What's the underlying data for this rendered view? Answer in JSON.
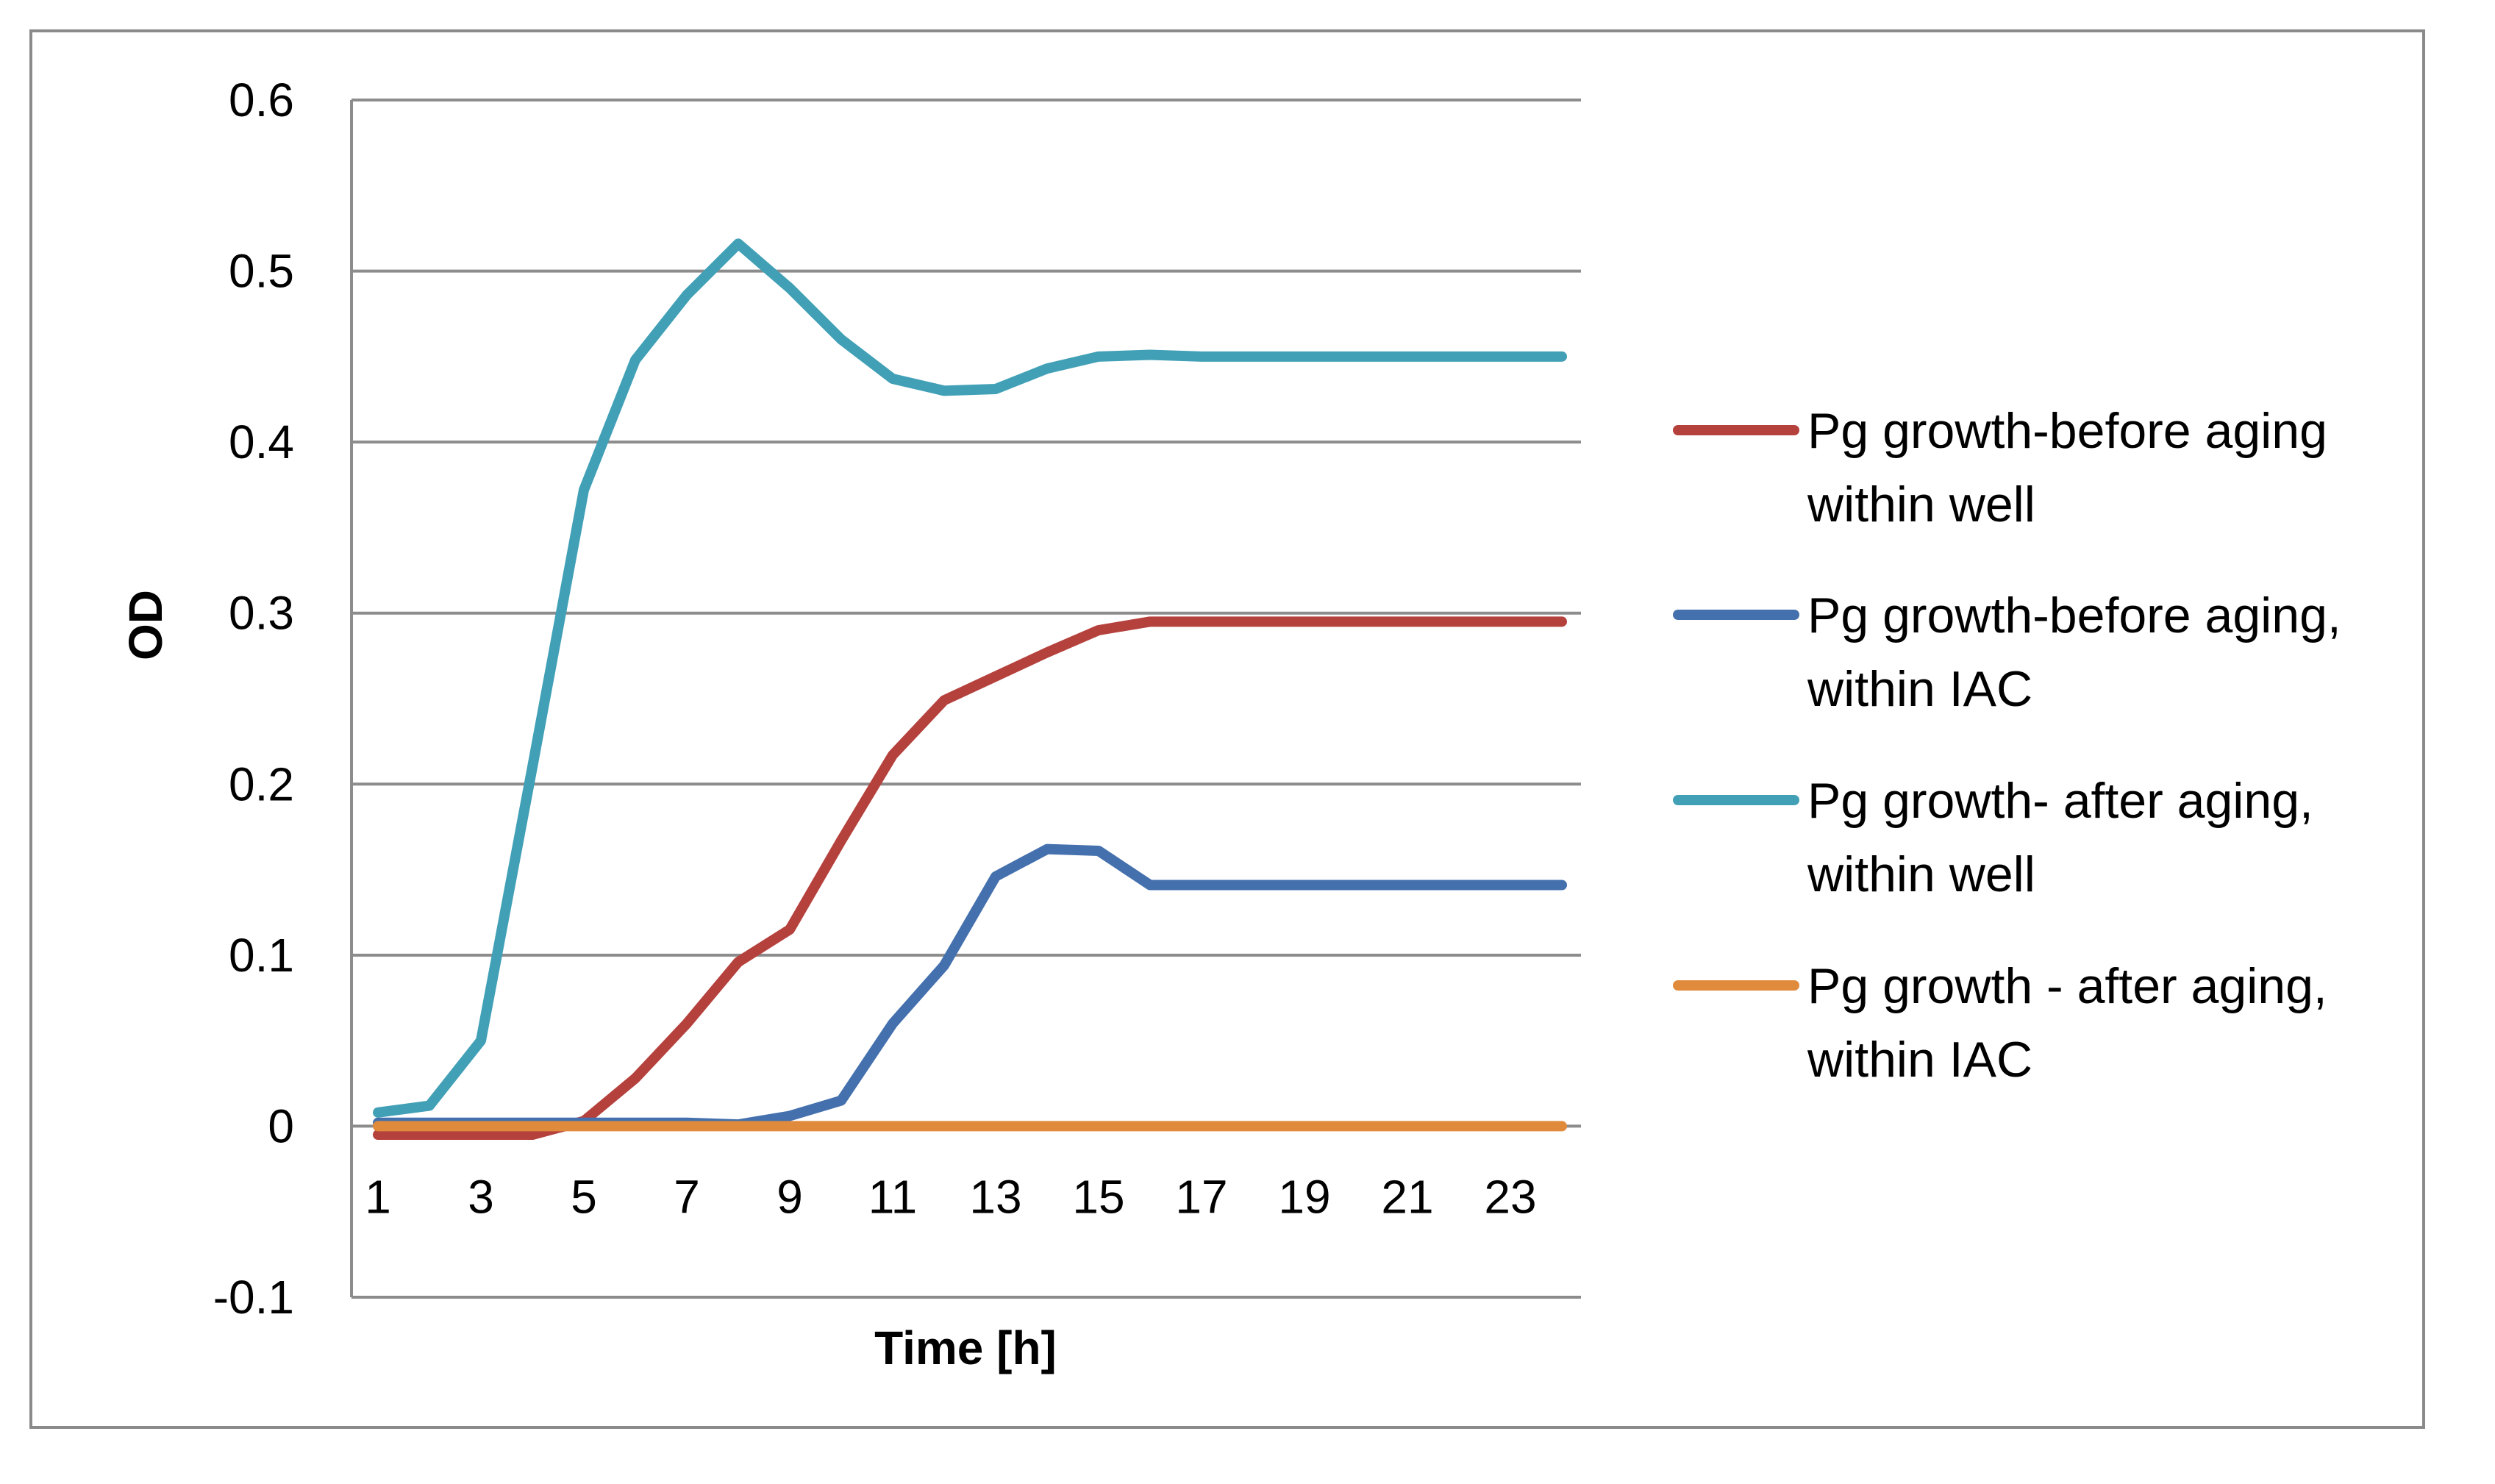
{
  "chart_data": {
    "type": "line",
    "title": "",
    "xlabel": "Time [h]",
    "ylabel": "OD",
    "x": [
      1,
      2,
      3,
      4,
      5,
      6,
      7,
      8,
      9,
      10,
      11,
      12,
      13,
      14,
      15,
      16,
      17,
      18,
      19,
      20,
      21,
      22,
      23,
      24
    ],
    "xticks": [
      1,
      3,
      5,
      7,
      9,
      11,
      13,
      15,
      17,
      19,
      21,
      23
    ],
    "xtick_labels": [
      "1",
      "3",
      "5",
      "7",
      "9",
      "11",
      "13",
      "15",
      "17",
      "19",
      "21",
      "23"
    ],
    "ylim": [
      -0.1,
      0.6
    ],
    "yticks": [
      -0.1,
      0,
      0.1,
      0.2,
      0.3,
      0.4,
      0.5,
      0.6
    ],
    "ytick_labels": [
      "-0.1",
      "0",
      "0.1",
      "0.2",
      "0.3",
      "0.4",
      "0.5",
      "0.6"
    ],
    "grid": true,
    "legend_position": "right",
    "series": [
      {
        "name": "Pg growth-before aging within well",
        "legend_lines": [
          "Pg growth-before aging",
          "within well"
        ],
        "color": "#b5413d",
        "values": [
          -0.005,
          -0.005,
          -0.005,
          -0.005,
          0.003,
          0.028,
          0.06,
          0.096,
          0.115,
          0.167,
          0.217,
          0.249,
          0.263,
          0.277,
          0.29,
          0.295,
          0.295,
          0.295,
          0.295,
          0.295,
          0.295,
          0.295,
          0.295,
          0.295
        ]
      },
      {
        "name": "Pg growth-before aging, within IAC",
        "legend_lines": [
          "Pg growth-before aging,",
          "within IAC"
        ],
        "color": "#4470ad",
        "values": [
          0.002,
          0.002,
          0.002,
          0.002,
          0.002,
          0.002,
          0.002,
          0.001,
          0.006,
          0.015,
          0.06,
          0.094,
          0.146,
          0.162,
          0.161,
          0.141,
          0.141,
          0.141,
          0.141,
          0.141,
          0.141,
          0.141,
          0.141,
          0.141
        ]
      },
      {
        "name": "Pg growth- after aging, within well",
        "legend_lines": [
          "Pg growth- after aging,",
          "within well"
        ],
        "color": "#41a0b6",
        "values": [
          0.008,
          0.012,
          0.05,
          0.21,
          0.372,
          0.448,
          0.486,
          0.516,
          0.49,
          0.46,
          0.437,
          0.43,
          0.431,
          0.443,
          0.45,
          0.451,
          0.45,
          0.45,
          0.45,
          0.45,
          0.45,
          0.45,
          0.45,
          0.45
        ]
      },
      {
        "name": "Pg growth - after aging, within IAC",
        "legend_lines": [
          "Pg growth - after aging,",
          "within IAC"
        ],
        "color": "#e08a3c",
        "values": [
          0,
          0,
          0,
          0,
          0,
          0,
          0,
          0,
          0,
          0,
          0,
          0,
          0,
          0,
          0,
          0,
          0,
          0,
          0,
          0,
          0,
          0,
          0,
          0
        ]
      }
    ]
  }
}
